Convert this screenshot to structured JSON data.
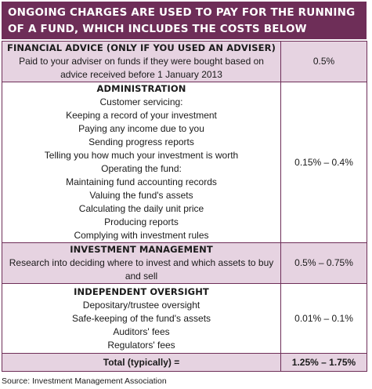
{
  "header": {
    "line1": "ONGOING CHARGES ARE USED TO PAY FOR THE RUNNING",
    "line2": "OF A FUND, WHICH INCLUDES THE COSTS BELOW"
  },
  "rows": [
    {
      "title": "FINANCIAL ADVICE (ONLY IF YOU USED AN ADVISER)",
      "text": "Paid to your adviser on funds if they were bought based on advice received before 1 January 2013",
      "rate": "0.5%"
    },
    {
      "title": "ADMINISTRATION",
      "items": [
        "Customer servicing:",
        "Keeping a record of your investment",
        "Paying any income due to you",
        "Sending progress reports",
        "Telling you how much your investment is worth",
        "Operating the fund:",
        "Maintaining fund accounting records",
        "Valuing the fund's assets",
        "Calculating the daily unit price",
        "Producing reports",
        "Complying with investment rules"
      ],
      "rate": "0.15% – 0.4%"
    },
    {
      "title": "INVESTMENT MANAGEMENT",
      "text": "Research into deciding where to invest and which assets to buy and sell",
      "rate": "0.5% – 0.75%"
    },
    {
      "title": "INDEPENDENT OVERSIGHT",
      "items": [
        "Depositary/trustee oversight",
        "Safe-keeping of the fund's assets",
        "Auditors' fees",
        "Regulators' fees"
      ],
      "rate": "0.01% – 0.1%"
    }
  ],
  "total": {
    "label": "Total (typically) =",
    "rate": "1.25% – 1.75%"
  },
  "source": "Source: Investment Management Association",
  "colors": {
    "header_bg": "#6e2e58",
    "shade": "#e6d3e1",
    "border": "#6e2e58"
  }
}
